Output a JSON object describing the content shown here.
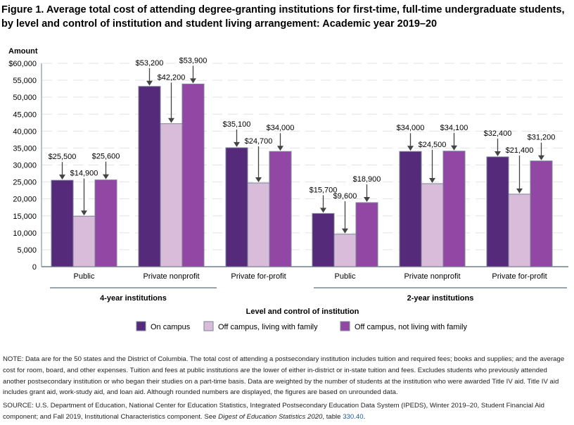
{
  "title": "Figure 1. Average total cost of attending degree-granting institutions for first-time, full-time undergraduate students, by level and control of institution and student living arrangement: Academic year 2019–20",
  "chart_data": {
    "type": "bar",
    "title": "Figure 1. Average total cost of attending degree-granting institutions for first-time, full-time undergraduate students, by level and control of institution and student living arrangement: Academic year 2019–20",
    "ylabel": "Amount",
    "xlabel": "Level and control of institution",
    "ylim": [
      0,
      60000
    ],
    "yticks": [
      0,
      5000,
      10000,
      15000,
      20000,
      25000,
      30000,
      35000,
      40000,
      45000,
      50000,
      55000,
      60000
    ],
    "ytick_labels": [
      "0",
      "5,000",
      "10,000",
      "15,000",
      "20,000",
      "25,000",
      "30,000",
      "35,000",
      "40,000",
      "45,000",
      "50,000",
      "55,000",
      "$60,000"
    ],
    "grid": true,
    "categories": [
      "Public",
      "Private nonprofit",
      "Private for-profit",
      "Public",
      "Private nonprofit",
      "Private for-profit"
    ],
    "category_groups": [
      {
        "label": "4-year institutions",
        "categories": [
          0,
          1,
          2
        ]
      },
      {
        "label": "2-year institutions",
        "categories": [
          3,
          4,
          5
        ]
      }
    ],
    "series": [
      {
        "name": "On campus",
        "color": "#562a7a",
        "values": [
          25500,
          53200,
          35100,
          15700,
          34000,
          32400
        ],
        "labels": [
          "$25,500",
          "$53,200",
          "$35,100",
          "$15,700",
          "$34,000",
          "$32,400"
        ]
      },
      {
        "name": "Off campus, living with family",
        "color": "#d8bcda",
        "values": [
          14900,
          42200,
          24700,
          9600,
          24500,
          21400
        ],
        "labels": [
          "$14,900",
          "$42,200",
          "$24,700",
          "$9,600",
          "$24,500",
          "$21,400"
        ]
      },
      {
        "name": "Off campus, not living with family",
        "color": "#9147a3",
        "values": [
          25600,
          53900,
          34000,
          18900,
          34100,
          31200
        ],
        "labels": [
          "$25,600",
          "$53,900",
          "$34,000",
          "$18,900",
          "$34,100",
          "$31,200"
        ]
      }
    ],
    "legend_position": "bottom"
  },
  "note": {
    "note_text": "NOTE: Data are for the 50 states and the District of Columbia. The total cost of attending a postsecondary institution includes tuition and required fees; books and supplies; and the average cost for room, board, and other expenses. Tuition and fees at public institutions are the lower of either in-district or in-state tuition and fees. Excludes students who previously attended another postsecondary institution or who began their studies on a part-time basis. Data are weighted by the number of students at the institution who were awarded Title IV aid. Title IV aid includes grant aid, work-study aid, and loan aid. Although rounded numbers are displayed, the figures are based on unrounded data.",
    "source_prefix": "SOURCE: U.S. Department of Education, National Center for Education Statistics, Integrated Postsecondary Education Data System (IPEDS), Winter 2019–20, Student Financial Aid component; and Fall 2019, Institutional Characteristics component. See ",
    "source_italic": "Digest of Education Statistics 2020",
    "source_mid": ", table ",
    "source_link": "330.40",
    "source_end": "."
  }
}
